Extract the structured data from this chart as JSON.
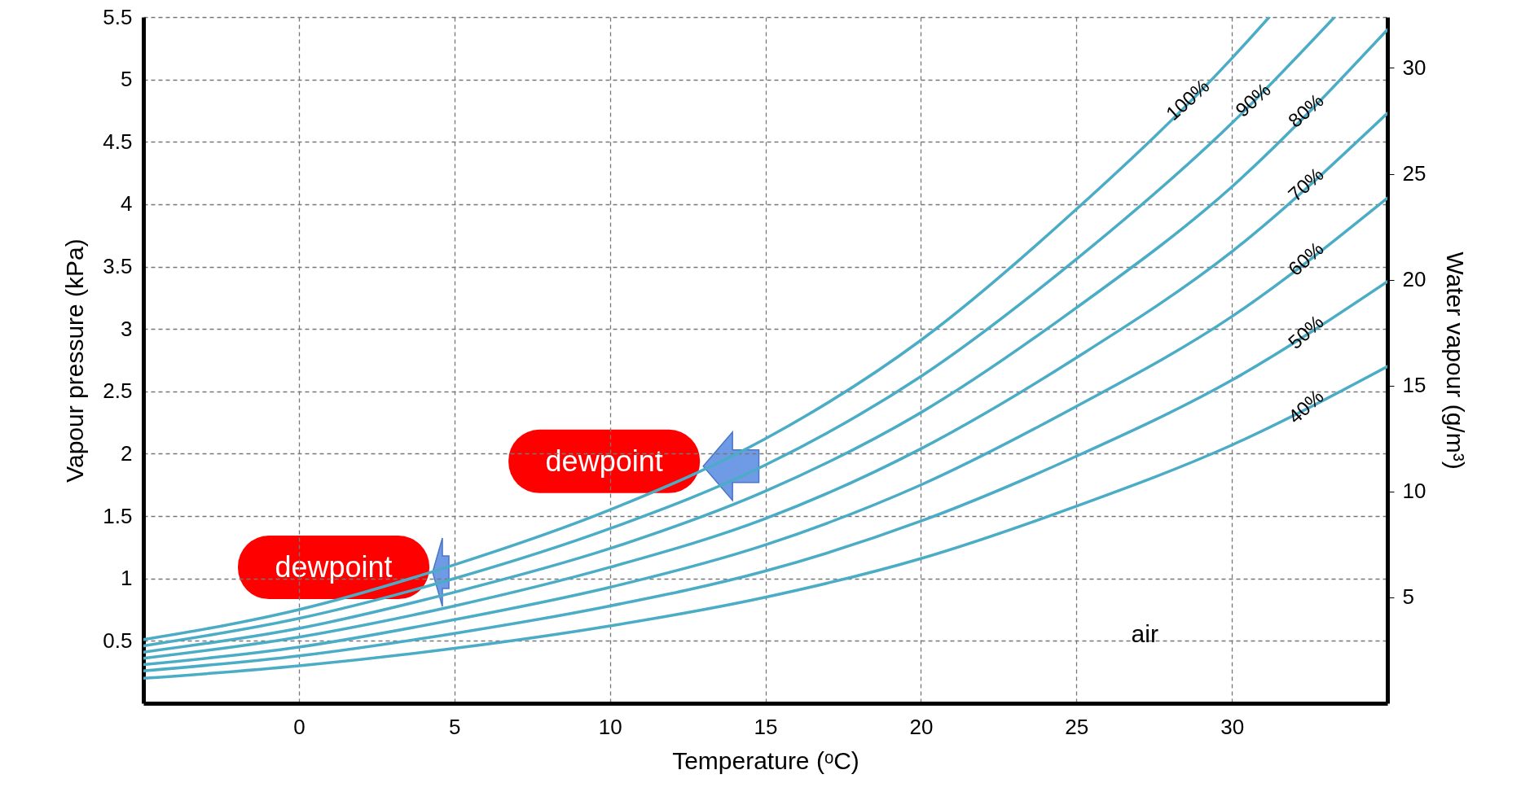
{
  "chart_data": {
    "type": "line",
    "xlabel": "Temperature (ᵒC)",
    "ylabel": "Vapour pressure (kPa)",
    "y2label": "Water vapour (g/m³)",
    "xlim": [
      -5,
      35
    ],
    "xticks": [
      0,
      5,
      10,
      15,
      20,
      25,
      30
    ],
    "ylim": [
      0,
      5.5
    ],
    "yticks": [
      0.5,
      1,
      1.5,
      2,
      2.5,
      3,
      3.5,
      4,
      4.5,
      5,
      5.5
    ],
    "y2lim": [
      0,
      32.4
    ],
    "y2ticks": [
      5,
      10,
      15,
      20,
      25,
      30
    ],
    "grid": true,
    "line_style": "solid",
    "series": [
      {
        "name": "100%",
        "color": "#4bacc6",
        "x": [
          -5,
          0,
          5,
          10,
          15,
          20,
          25,
          30,
          31.2
        ],
        "values": [
          0.51,
          0.75,
          1.11,
          1.55,
          2.12,
          2.91,
          3.96,
          5.17,
          5.5
        ]
      },
      {
        "name": "90%",
        "color": "#4bacc6",
        "x": [
          -5,
          0,
          5,
          10,
          15,
          20,
          25,
          30,
          33.3
        ],
        "values": [
          0.46,
          0.68,
          1.0,
          1.4,
          1.91,
          2.62,
          3.56,
          4.65,
          5.5
        ]
      },
      {
        "name": "80%",
        "color": "#4bacc6",
        "x": [
          -5,
          0,
          5,
          10,
          15,
          20,
          25,
          30,
          35
        ],
        "values": [
          0.41,
          0.6,
          0.89,
          1.24,
          1.7,
          2.33,
          3.17,
          4.14,
          5.4
        ]
      },
      {
        "name": "70%",
        "color": "#4bacc6",
        "x": [
          -5,
          0,
          5,
          10,
          15,
          20,
          25,
          30,
          35
        ],
        "values": [
          0.36,
          0.53,
          0.78,
          1.09,
          1.48,
          2.04,
          2.77,
          3.62,
          4.73
        ]
      },
      {
        "name": "60%",
        "color": "#4bacc6",
        "x": [
          -5,
          0,
          5,
          10,
          15,
          20,
          25,
          30,
          35
        ],
        "values": [
          0.31,
          0.45,
          0.67,
          0.93,
          1.27,
          1.75,
          2.38,
          3.1,
          4.05
        ]
      },
      {
        "name": "50%",
        "color": "#4bacc6",
        "x": [
          -5,
          0,
          5,
          10,
          15,
          20,
          25,
          30,
          35
        ],
        "values": [
          0.26,
          0.38,
          0.56,
          0.78,
          1.06,
          1.46,
          1.98,
          2.59,
          3.38
        ]
      },
      {
        "name": "40%",
        "color": "#4bacc6",
        "x": [
          -5,
          0,
          5,
          10,
          15,
          20,
          25,
          30,
          35
        ],
        "values": [
          0.2,
          0.3,
          0.44,
          0.62,
          0.85,
          1.16,
          1.58,
          2.07,
          2.7
        ]
      }
    ],
    "annotations": [
      {
        "text": "dewpoint",
        "x": 4.3,
        "y": 1.05
      },
      {
        "text": "dewpoint",
        "x": 13,
        "y": 1.9
      },
      "air"
    ]
  }
}
